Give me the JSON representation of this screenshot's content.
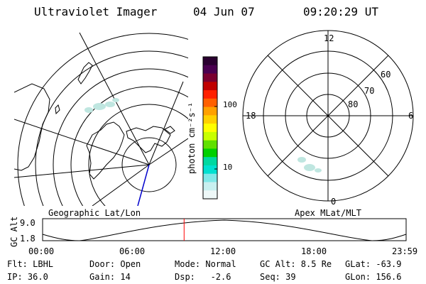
{
  "header": {
    "title": "Ultraviolet Imager",
    "date": "04 Jun 07",
    "time": "09:20:29 UT"
  },
  "geo_panel": {
    "label": "Geographic Lat/Lon"
  },
  "apex_panel": {
    "label": "Apex MLat/MLT",
    "mlt_labels": {
      "top": "12",
      "left": "18",
      "right": "6",
      "bottom": "0"
    },
    "mlat_labels": [
      "60",
      "70",
      "80"
    ]
  },
  "colorbar": {
    "unit": "photon cm⁻²s⁻¹",
    "ticks": [
      "100",
      "10"
    ],
    "colors": [
      "#2a0030",
      "#4a0050",
      "#7a0030",
      "#c00000",
      "#ff2000",
      "#ff6000",
      "#ffa000",
      "#ffd000",
      "#ffff00",
      "#c8ff00",
      "#60e000",
      "#00d000",
      "#00d8a0",
      "#00e0d0",
      "#80e8e8",
      "#c8f0f0",
      "#eef8f8"
    ]
  },
  "altitude_plot": {
    "y_title": "GC Alt",
    "y_ticks": [
      "9.0",
      "1.8"
    ],
    "x_ticks": [
      "00:00",
      "06:00",
      "12:00",
      "18:00",
      "23:59"
    ],
    "current_time_fraction": 0.3892
  },
  "footer": {
    "row1": {
      "filter": "Flt: LBHL",
      "door": "Door: Open",
      "mode": "Mode: Normal",
      "gc_alt": "GC Alt: 8.5 Re",
      "glat": "GLat: -63.9"
    },
    "row2": {
      "ip": "IP: 36.0",
      "gain": "Gain: 14",
      "dsp": "Dsp:   -2.6",
      "seq": "Seq: 39",
      "glon": "GLon: 156.6"
    }
  },
  "colors": {
    "grid": "#000000",
    "time_marker": "#ff0000",
    "track": "#0000cc",
    "aurora": "#bfe6e0"
  }
}
